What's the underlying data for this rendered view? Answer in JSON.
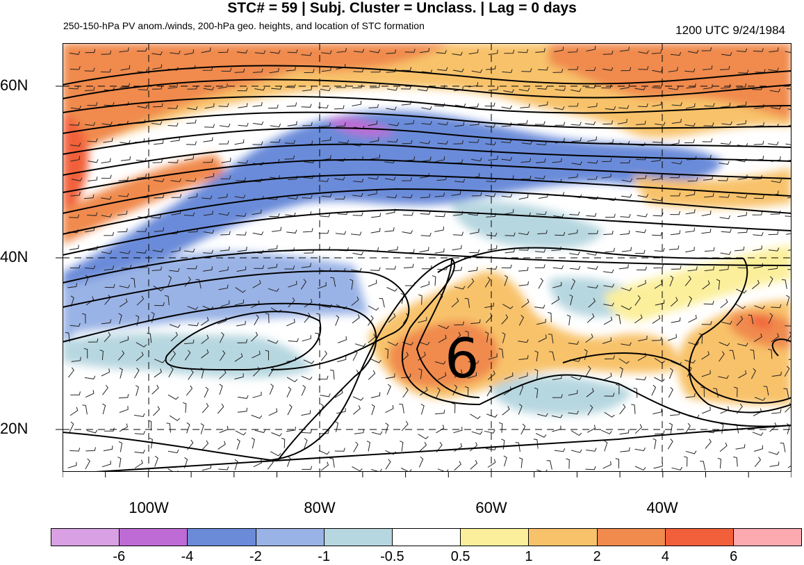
{
  "header": {
    "title": "STC# = 59 | Subj. Cluster = Unclass. | Lag = 0 days",
    "subtitle": "250-150-hPa PV anom./winds, 200-hPa geo. heights, and location of STC formation",
    "datetime": "1200 UTC  9/24/1984"
  },
  "axes": {
    "lat_labels": [
      "60N",
      "40N",
      "20N"
    ],
    "lon_labels": [
      "100W",
      "80W",
      "60W",
      "40W"
    ]
  },
  "map": {
    "stc_marker": "6",
    "colors": {
      "contour": "#000000",
      "gridline": "#000000"
    }
  },
  "colorbar": {
    "labels": [
      "-6",
      "-4",
      "-2",
      "-1",
      "-0.5",
      "0.5",
      "1",
      "2",
      "4",
      "6"
    ],
    "colors": [
      "#d9a0e3",
      "#bf6bd6",
      "#6b8bd9",
      "#9ab3e6",
      "#b7d7e0",
      "#ffffff",
      "#fcef9b",
      "#f8c26a",
      "#f08a4d",
      "#f2603b",
      "#fca9b0"
    ]
  }
}
